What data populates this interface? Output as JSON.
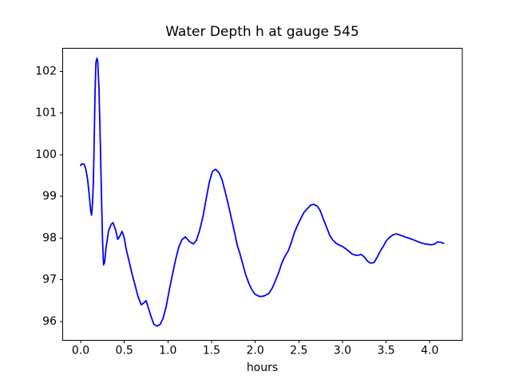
{
  "chart_data": {
    "type": "line",
    "title": "Water Depth h at gauge 545",
    "xlabel": "hours",
    "ylabel": "",
    "grid": false,
    "legend_position": "none",
    "xlim": [
      -0.206,
      4.373
    ],
    "ylim": [
      95.55,
      102.55
    ],
    "x_ticks": [
      {
        "v": 0.0,
        "label": "0.0"
      },
      {
        "v": 0.5,
        "label": "0.5"
      },
      {
        "v": 1.0,
        "label": "1.0"
      },
      {
        "v": 1.5,
        "label": "1.5"
      },
      {
        "v": 2.0,
        "label": "2.0"
      },
      {
        "v": 2.5,
        "label": "2.5"
      },
      {
        "v": 3.0,
        "label": "3.0"
      },
      {
        "v": 3.5,
        "label": "3.5"
      },
      {
        "v": 4.0,
        "label": "4.0"
      }
    ],
    "y_ticks": [
      {
        "v": 96,
        "label": "96"
      },
      {
        "v": 97,
        "label": "97"
      },
      {
        "v": 98,
        "label": "98"
      },
      {
        "v": 99,
        "label": "99"
      },
      {
        "v": 100,
        "label": "100"
      },
      {
        "v": 101,
        "label": "101"
      },
      {
        "v": 102,
        "label": "102"
      }
    ],
    "series": [
      {
        "name": "water-depth-h",
        "color": "#0000ff",
        "line_width": 1.8,
        "points": [
          [
            0.0,
            99.74
          ],
          [
            0.01,
            99.78
          ],
          [
            0.04,
            99.77
          ],
          [
            0.06,
            99.65
          ],
          [
            0.08,
            99.4
          ],
          [
            0.1,
            99.0
          ],
          [
            0.115,
            98.65
          ],
          [
            0.125,
            98.55
          ],
          [
            0.135,
            98.8
          ],
          [
            0.145,
            99.3
          ],
          [
            0.155,
            100.3
          ],
          [
            0.165,
            101.5
          ],
          [
            0.175,
            102.2
          ],
          [
            0.185,
            102.31
          ],
          [
            0.195,
            102.25
          ],
          [
            0.21,
            101.6
          ],
          [
            0.225,
            100.3
          ],
          [
            0.24,
            98.9
          ],
          [
            0.25,
            98.0
          ],
          [
            0.262,
            97.36
          ],
          [
            0.275,
            97.42
          ],
          [
            0.29,
            97.75
          ],
          [
            0.32,
            98.18
          ],
          [
            0.35,
            98.33
          ],
          [
            0.37,
            98.37
          ],
          [
            0.4,
            98.2
          ],
          [
            0.425,
            97.97
          ],
          [
            0.45,
            98.05
          ],
          [
            0.475,
            98.16
          ],
          [
            0.5,
            98.0
          ],
          [
            0.52,
            97.75
          ],
          [
            0.56,
            97.4
          ],
          [
            0.59,
            97.13
          ],
          [
            0.62,
            96.9
          ],
          [
            0.66,
            96.58
          ],
          [
            0.695,
            96.4
          ],
          [
            0.72,
            96.44
          ],
          [
            0.75,
            96.5
          ],
          [
            0.78,
            96.3
          ],
          [
            0.81,
            96.1
          ],
          [
            0.84,
            95.93
          ],
          [
            0.875,
            95.89
          ],
          [
            0.91,
            95.93
          ],
          [
            0.945,
            96.08
          ],
          [
            0.98,
            96.36
          ],
          [
            1.02,
            96.8
          ],
          [
            1.055,
            97.16
          ],
          [
            1.09,
            97.5
          ],
          [
            1.125,
            97.79
          ],
          [
            1.16,
            97.96
          ],
          [
            1.2,
            98.03
          ],
          [
            1.245,
            97.92
          ],
          [
            1.29,
            97.86
          ],
          [
            1.325,
            97.94
          ],
          [
            1.36,
            98.16
          ],
          [
            1.4,
            98.5
          ],
          [
            1.44,
            98.96
          ],
          [
            1.475,
            99.35
          ],
          [
            1.51,
            99.6
          ],
          [
            1.545,
            99.65
          ],
          [
            1.585,
            99.57
          ],
          [
            1.62,
            99.4
          ],
          [
            1.655,
            99.12
          ],
          [
            1.69,
            98.82
          ],
          [
            1.73,
            98.45
          ],
          [
            1.765,
            98.12
          ],
          [
            1.795,
            97.82
          ],
          [
            1.82,
            97.66
          ],
          [
            1.855,
            97.4
          ],
          [
            1.89,
            97.13
          ],
          [
            1.93,
            96.9
          ],
          [
            1.965,
            96.75
          ],
          [
            2.0,
            96.65
          ],
          [
            2.05,
            96.6
          ],
          [
            2.1,
            96.61
          ],
          [
            2.155,
            96.67
          ],
          [
            2.195,
            96.8
          ],
          [
            2.23,
            96.97
          ],
          [
            2.27,
            97.18
          ],
          [
            2.305,
            97.4
          ],
          [
            2.34,
            97.56
          ],
          [
            2.38,
            97.7
          ],
          [
            2.415,
            97.9
          ],
          [
            2.45,
            98.14
          ],
          [
            2.49,
            98.33
          ],
          [
            2.525,
            98.48
          ],
          [
            2.56,
            98.62
          ],
          [
            2.6,
            98.71
          ],
          [
            2.635,
            98.79
          ],
          [
            2.67,
            98.81
          ],
          [
            2.71,
            98.77
          ],
          [
            2.745,
            98.66
          ],
          [
            2.78,
            98.46
          ],
          [
            2.82,
            98.25
          ],
          [
            2.855,
            98.06
          ],
          [
            2.89,
            97.95
          ],
          [
            2.93,
            97.87
          ],
          [
            2.965,
            97.83
          ],
          [
            3.0,
            97.8
          ],
          [
            3.04,
            97.74
          ],
          [
            3.075,
            97.68
          ],
          [
            3.11,
            97.62
          ],
          [
            3.148,
            97.59
          ],
          [
            3.185,
            97.59
          ],
          [
            3.21,
            97.61
          ],
          [
            3.25,
            97.55
          ],
          [
            3.285,
            97.45
          ],
          [
            3.32,
            97.4
          ],
          [
            3.36,
            97.41
          ],
          [
            3.395,
            97.53
          ],
          [
            3.43,
            97.68
          ],
          [
            3.47,
            97.81
          ],
          [
            3.5,
            97.93
          ],
          [
            3.54,
            98.02
          ],
          [
            3.58,
            98.08
          ],
          [
            3.615,
            98.1
          ],
          [
            3.65,
            98.08
          ],
          [
            3.69,
            98.05
          ],
          [
            3.725,
            98.02
          ],
          [
            3.76,
            98.0
          ],
          [
            3.8,
            97.97
          ],
          [
            3.835,
            97.94
          ],
          [
            3.87,
            97.91
          ],
          [
            3.91,
            97.88
          ],
          [
            3.945,
            97.86
          ],
          [
            3.98,
            97.85
          ],
          [
            4.02,
            97.84
          ],
          [
            4.06,
            97.86
          ],
          [
            4.09,
            97.91
          ],
          [
            4.13,
            97.9
          ],
          [
            4.16,
            97.87
          ]
        ]
      }
    ]
  }
}
